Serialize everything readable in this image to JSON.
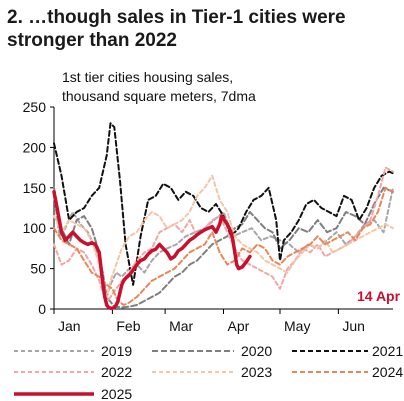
{
  "header": {
    "title_line1": "2. …though sales in Tier-1 cities were",
    "title_line2": "stronger than 2022"
  },
  "chart_data": {
    "type": "line",
    "subtitle_line1": "1st tier cities housing sales,",
    "subtitle_line2": "thousand square meters, 7dma",
    "ylim": [
      0,
      250
    ],
    "yticks": [
      "0",
      "50",
      "100",
      "150",
      "200",
      "250"
    ],
    "x_range_days": [
      0,
      180
    ],
    "x_ticks": [
      {
        "label": "Jan",
        "day": 0
      },
      {
        "label": "Feb",
        "day": 31
      },
      {
        "label": "Mar",
        "day": 59
      },
      {
        "label": "Apr",
        "day": 90
      },
      {
        "label": "May",
        "day": 120
      },
      {
        "label": "Jun",
        "day": 151
      }
    ],
    "annotation": {
      "text": "14 Apr",
      "color": "#c8102e"
    },
    "grid": false,
    "legend_position": "bottom",
    "series": [
      {
        "name": "2019",
        "color": "#a6a6a6",
        "dash": "4,3",
        "width": 2,
        "x": [
          0,
          3,
          6,
          10,
          14,
          18,
          22,
          26,
          28,
          30,
          33,
          36,
          40,
          44,
          48,
          52,
          56,
          60,
          65,
          70,
          75,
          80,
          85,
          90,
          95,
          100,
          105,
          110,
          115,
          120,
          125,
          130,
          135,
          140,
          145,
          150,
          155,
          160,
          165,
          170,
          175,
          180
        ],
        "y": [
          140,
          90,
          100,
          120,
          105,
          95,
          75,
          45,
          15,
          30,
          45,
          40,
          50,
          55,
          45,
          60,
          70,
          75,
          80,
          90,
          95,
          100,
          110,
          120,
          90,
          95,
          100,
          85,
          90,
          85,
          80,
          70,
          80,
          75,
          85,
          95,
          80,
          90,
          105,
          110,
          95,
          150
        ]
      },
      {
        "name": "2020",
        "color": "#7f7f7f",
        "dash": "6,3",
        "width": 2,
        "x": [
          0,
          4,
          8,
          12,
          16,
          20,
          24,
          26,
          28,
          32,
          36,
          40,
          44,
          48,
          52,
          56,
          60,
          64,
          68,
          72,
          76,
          80,
          84,
          88,
          92,
          96,
          100,
          104,
          108,
          112,
          116,
          120,
          125,
          130,
          135,
          140,
          145,
          150,
          155,
          160,
          165,
          170,
          175,
          180
        ],
        "y": [
          150,
          100,
          80,
          110,
          115,
          100,
          70,
          40,
          15,
          3,
          2,
          3,
          5,
          10,
          15,
          20,
          30,
          40,
          45,
          55,
          60,
          70,
          80,
          85,
          90,
          100,
          105,
          120,
          110,
          100,
          95,
          75,
          85,
          100,
          95,
          110,
          95,
          100,
          120,
          115,
          105,
          130,
          150,
          145
        ]
      },
      {
        "name": "2021",
        "color": "#111111",
        "dash": "5,3",
        "width": 2,
        "x": [
          0,
          4,
          8,
          12,
          16,
          20,
          24,
          28,
          30,
          32,
          35,
          38,
          42,
          46,
          50,
          54,
          58,
          62,
          66,
          70,
          74,
          78,
          82,
          86,
          90,
          94,
          98,
          102,
          106,
          110,
          114,
          118,
          120,
          122,
          126,
          130,
          134,
          138,
          142,
          146,
          150,
          154,
          158,
          162,
          166,
          170,
          174,
          178,
          180
        ],
        "y": [
          205,
          165,
          110,
          120,
          125,
          140,
          150,
          190,
          230,
          225,
          160,
          80,
          30,
          90,
          135,
          140,
          155,
          150,
          135,
          145,
          140,
          125,
          120,
          130,
          115,
          90,
          100,
          120,
          135,
          140,
          150,
          110,
          60,
          85,
          95,
          110,
          130,
          135,
          125,
          120,
          115,
          140,
          135,
          110,
          125,
          150,
          165,
          170,
          168
        ]
      },
      {
        "name": "2022",
        "color": "#f4a6a6",
        "dash": "4,3",
        "width": 2,
        "x": [
          0,
          4,
          8,
          12,
          16,
          20,
          24,
          26,
          28,
          30,
          33,
          36,
          40,
          44,
          48,
          52,
          56,
          60,
          64,
          68,
          72,
          76,
          80,
          84,
          88,
          92,
          96,
          100,
          104,
          108,
          112,
          116,
          120,
          124,
          128,
          132,
          136,
          140,
          144,
          148,
          152,
          156,
          160,
          164,
          168,
          172,
          176,
          180
        ],
        "y": [
          80,
          55,
          60,
          75,
          70,
          55,
          35,
          20,
          8,
          15,
          25,
          35,
          45,
          60,
          70,
          75,
          95,
          100,
          105,
          95,
          110,
          90,
          100,
          110,
          115,
          95,
          75,
          60,
          55,
          50,
          45,
          40,
          25,
          50,
          60,
          75,
          70,
          80,
          65,
          70,
          75,
          80,
          90,
          100,
          110,
          140,
          175,
          170
        ]
      },
      {
        "name": "2023",
        "color": "#f5c6a5",
        "dash": "4,3",
        "width": 2,
        "x": [
          0,
          4,
          8,
          12,
          16,
          20,
          24,
          26,
          28,
          30,
          33,
          36,
          40,
          44,
          48,
          52,
          56,
          60,
          64,
          68,
          72,
          76,
          80,
          84,
          88,
          92,
          96,
          100,
          104,
          108,
          112,
          116,
          120,
          124,
          128,
          132,
          136,
          140,
          144,
          148,
          152,
          156,
          160,
          164,
          168,
          172,
          176,
          180
        ],
        "y": [
          115,
          95,
          110,
          105,
          100,
          85,
          55,
          30,
          15,
          35,
          55,
          75,
          90,
          95,
          110,
          120,
          115,
          100,
          105,
          110,
          120,
          140,
          150,
          165,
          135,
          120,
          90,
          80,
          75,
          70,
          60,
          55,
          50,
          45,
          60,
          70,
          80,
          75,
          85,
          70,
          75,
          80,
          85,
          90,
          95,
          100,
          105,
          100
        ]
      },
      {
        "name": "2024",
        "color": "#e8875a",
        "dash": "5,3",
        "width": 2,
        "x": [
          0,
          4,
          8,
          12,
          16,
          20,
          24,
          28,
          31,
          34,
          37,
          40,
          44,
          48,
          52,
          56,
          60,
          64,
          68,
          72,
          76,
          80,
          84,
          88,
          92,
          96,
          100,
          104,
          108,
          112,
          116,
          120,
          124,
          128,
          132,
          136,
          140,
          144,
          148,
          152,
          156,
          160,
          164,
          168,
          172,
          176,
          180
        ],
        "y": [
          100,
          85,
          80,
          75,
          60,
          45,
          40,
          30,
          25,
          10,
          5,
          8,
          15,
          25,
          35,
          40,
          45,
          50,
          60,
          70,
          75,
          80,
          95,
          70,
          55,
          60,
          75,
          70,
          80,
          75,
          60,
          55,
          65,
          70,
          75,
          80,
          90,
          80,
          85,
          90,
          95,
          85,
          100,
          105,
          120,
          150,
          145
        ]
      },
      {
        "name": "2025",
        "color": "#c8102e",
        "dash": "none",
        "width": 3.5,
        "x": [
          0,
          2,
          4,
          6,
          8,
          10,
          12,
          14,
          16,
          18,
          20,
          22,
          24,
          25,
          26,
          27,
          28,
          29,
          30,
          31,
          32,
          33,
          34,
          35,
          36,
          37,
          38,
          40,
          42,
          44,
          46,
          48,
          50,
          52,
          54,
          56,
          58,
          60,
          62,
          64,
          66,
          68,
          70,
          72,
          74,
          76,
          78,
          80,
          82,
          84,
          86,
          88,
          89,
          90,
          91,
          92,
          93,
          94,
          95,
          96,
          97,
          98,
          100,
          102,
          104
        ],
        "y": [
          145,
          120,
          95,
          85,
          90,
          95,
          90,
          85,
          82,
          80,
          82,
          80,
          70,
          50,
          30,
          15,
          5,
          2,
          1,
          1,
          2,
          5,
          10,
          20,
          30,
          35,
          38,
          42,
          48,
          55,
          60,
          62,
          68,
          72,
          74,
          80,
          75,
          70,
          62,
          65,
          72,
          75,
          80,
          85,
          88,
          92,
          95,
          98,
          100,
          102,
          95,
          105,
          115,
          112,
          108,
          105,
          100,
          95,
          85,
          70,
          55,
          50,
          52,
          58,
          65
        ]
      }
    ]
  }
}
